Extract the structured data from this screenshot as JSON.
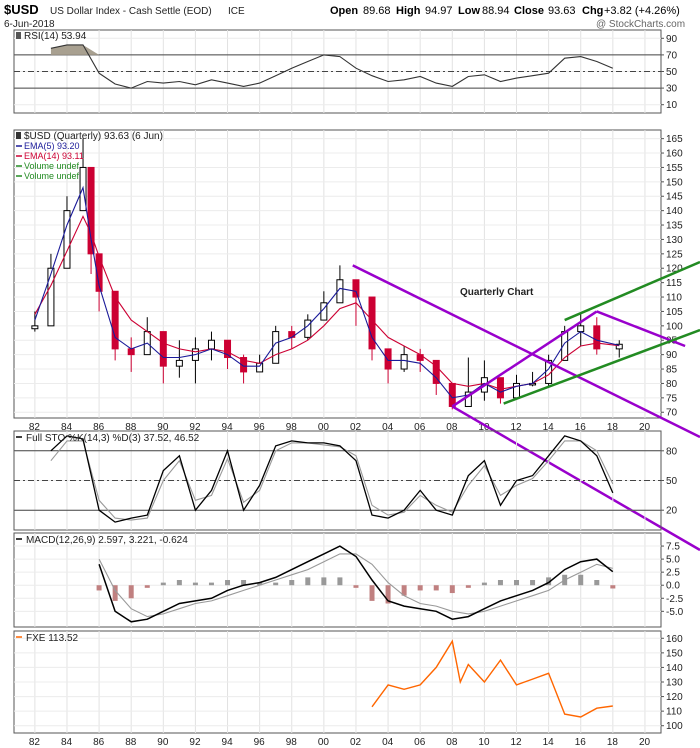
{
  "header": {
    "symbol": "$USD",
    "name": "US Dollar Index - Cash Settle (EOD)",
    "exchange": "ICE",
    "date": "6-Jun-2018",
    "watermark": "@ StockCharts.com",
    "open_label": "Open",
    "open": "89.68",
    "high_label": "High",
    "high": "94.97",
    "low_label": "Low",
    "low": "88.94",
    "close_label": "Close",
    "close": "93.63",
    "chg_label": "Chg",
    "chg": "+3.82 (+4.26%)"
  },
  "colors": {
    "price_up": "#000000",
    "price_down": "#cc0033",
    "ema5": "#1a1a99",
    "ema14": "#cc0033",
    "channel": "#9900cc",
    "uptrend": "#228b22",
    "fxe": "#ff6600",
    "macd_hist": "#999999",
    "macd_hist_neg": "#c08080"
  },
  "chart_data": [
    {
      "panel": "rsi",
      "type": "line",
      "legend": "RSI(14) 53.94",
      "ylim": [
        0,
        100
      ],
      "yticks": [
        10,
        30,
        50,
        70,
        90
      ],
      "levels": [
        30,
        50,
        70
      ],
      "x": [
        1983,
        1984,
        1985,
        1986,
        1987,
        1988,
        1989,
        1990,
        1991,
        1992,
        1993,
        1994,
        1995,
        1996,
        1997,
        1998,
        1999,
        2000,
        2001,
        2002,
        2003,
        2004,
        2005,
        2006,
        2007,
        2008,
        2009,
        2010,
        2011,
        2012,
        2013,
        2014,
        2015,
        2016,
        2017,
        2018
      ],
      "values": [
        78,
        82,
        82,
        48,
        35,
        30,
        38,
        36,
        38,
        34,
        40,
        36,
        32,
        36,
        45,
        54,
        62,
        70,
        68,
        54,
        45,
        38,
        40,
        44,
        36,
        32,
        44,
        46,
        38,
        42,
        45,
        48,
        66,
        68,
        62,
        54
      ]
    },
    {
      "panel": "price",
      "type": "candlestick",
      "legend": [
        "$USD (Quarterly) 93.63 (6 Jun)",
        "EMA(5) 93.20",
        "EMA(14) 93.11",
        "Volume undef",
        "Volume undef"
      ],
      "annotation": "Quarterly Chart",
      "ylim": [
        68,
        168
      ],
      "yticks": [
        70,
        75,
        80,
        85,
        90,
        95,
        100,
        105,
        110,
        115,
        120,
        125,
        130,
        135,
        140,
        145,
        150,
        155,
        160,
        165
      ],
      "xticks": [
        "82",
        "84",
        "86",
        "88",
        "90",
        "92",
        "94",
        "96",
        "98",
        "00",
        "02",
        "04",
        "06",
        "08",
        "10",
        "12",
        "14",
        "16",
        "18",
        "20"
      ],
      "x": [
        1982,
        1983,
        1984,
        1985,
        1985.5,
        1986,
        1987,
        1988,
        1989,
        1990,
        1991,
        1992,
        1993,
        1994,
        1995,
        1996,
        1997,
        1998,
        1999,
        2000,
        2001,
        2002,
        2003,
        2004,
        2005,
        2006,
        2007,
        2008,
        2009,
        2010,
        2011,
        2012,
        2013,
        2014,
        2015,
        2016,
        2017,
        2018.4
      ],
      "close": [
        100,
        120,
        140,
        155,
        125,
        112,
        92,
        90,
        98,
        86,
        88,
        92,
        95,
        89,
        84,
        87,
        98,
        96,
        102,
        108,
        116,
        110,
        92,
        85,
        90,
        88,
        80,
        72,
        77,
        82,
        75,
        80,
        80,
        88,
        98,
        100,
        92,
        93.6
      ],
      "high": [
        105,
        125,
        145,
        165,
        130,
        120,
        100,
        96,
        103,
        95,
        95,
        96,
        98,
        95,
        90,
        90,
        100,
        100,
        104,
        112,
        121,
        115,
        100,
        90,
        93,
        92,
        84,
        78,
        89,
        88,
        80,
        83,
        84,
        90,
        100,
        104,
        103,
        95
      ],
      "low": [
        98,
        110,
        132,
        148,
        118,
        105,
        88,
        84,
        92,
        80,
        82,
        80,
        88,
        85,
        80,
        84,
        92,
        92,
        95,
        102,
        110,
        100,
        88,
        80,
        84,
        84,
        76,
        71,
        76,
        74,
        73,
        78,
        79,
        79,
        92,
        93,
        90,
        89
      ],
      "ema5_values": [
        102,
        118,
        135,
        148,
        130,
        114,
        96,
        92,
        94,
        89,
        89,
        90,
        92,
        90,
        86,
        86,
        94,
        96,
        100,
        106,
        113,
        112,
        96,
        88,
        88,
        87,
        82,
        75,
        76,
        80,
        77,
        79,
        80,
        85,
        94,
        98,
        95,
        93.2
      ],
      "ema14_values": [
        104,
        114,
        126,
        138,
        132,
        124,
        110,
        102,
        98,
        94,
        92,
        91,
        92,
        91,
        88,
        87,
        90,
        92,
        95,
        100,
        106,
        108,
        102,
        96,
        93,
        90,
        86,
        80,
        79,
        80,
        78,
        79,
        80,
        83,
        89,
        93,
        94,
        93.11
      ]
    },
    {
      "panel": "stochastic",
      "type": "line",
      "legend": "Full STO %K(14,3) %D(3) 37.52, 46.52",
      "ylim": [
        0,
        100
      ],
      "yticks": [
        20,
        50,
        80
      ],
      "levels": [
        20,
        50,
        80
      ],
      "x": [
        1983,
        1984,
        1985,
        1986,
        1987,
        1988,
        1989,
        1990,
        1991,
        1992,
        1993,
        1994,
        1995,
        1996,
        1997,
        1998,
        1999,
        2000,
        2001,
        2002,
        2003,
        2004,
        2005,
        2006,
        2007,
        2008,
        2009,
        2010,
        2011,
        2012,
        2013,
        2014,
        2015,
        2016,
        2017,
        2018
      ],
      "k": [
        80,
        95,
        92,
        20,
        8,
        12,
        15,
        60,
        75,
        20,
        40,
        80,
        20,
        45,
        85,
        90,
        88,
        88,
        85,
        70,
        15,
        12,
        20,
        40,
        20,
        15,
        55,
        70,
        25,
        50,
        55,
        75,
        95,
        90,
        75,
        37.52
      ],
      "d": [
        70,
        90,
        90,
        30,
        12,
        10,
        12,
        50,
        70,
        30,
        35,
        72,
        28,
        40,
        80,
        88,
        88,
        86,
        84,
        75,
        25,
        15,
        18,
        35,
        25,
        18,
        45,
        65,
        35,
        45,
        52,
        70,
        90,
        90,
        80,
        46.52
      ]
    },
    {
      "panel": "macd",
      "type": "line",
      "legend": "MACD(12,26,9) 2.597, 3.221, -0.624",
      "ylim": [
        -8,
        10
      ],
      "yticks": [
        -5.0,
        -2.5,
        0.0,
        2.5,
        5.0,
        7.5
      ],
      "x": [
        1986,
        1987,
        1988,
        1989,
        1990,
        1991,
        1992,
        1993,
        1994,
        1995,
        1996,
        1997,
        1998,
        1999,
        2000,
        2001,
        2002,
        2003,
        2004,
        2005,
        2006,
        2007,
        2008,
        2009,
        2010,
        2011,
        2012,
        2013,
        2014,
        2015,
        2016,
        2017,
        2018
      ],
      "macd": [
        4.0,
        -5.0,
        -7.0,
        -6.5,
        -5.0,
        -3.5,
        -3.0,
        -2.5,
        -1.0,
        0.0,
        0.5,
        1.5,
        3.0,
        4.5,
        6.0,
        7.5,
        5.5,
        1.0,
        -3.0,
        -4.0,
        -4.5,
        -5.0,
        -6.5,
        -6.0,
        -4.5,
        -3.0,
        -2.0,
        -1.0,
        0.5,
        3.0,
        4.5,
        5.0,
        2.597
      ],
      "signal": [
        5.0,
        -1.0,
        -4.5,
        -6.0,
        -5.5,
        -4.5,
        -3.5,
        -3.0,
        -2.0,
        -1.0,
        0.0,
        1.0,
        2.0,
        3.0,
        4.5,
        6.0,
        6.0,
        4.0,
        0.5,
        -2.0,
        -3.5,
        -4.0,
        -5.0,
        -5.5,
        -5.0,
        -4.0,
        -3.0,
        -2.0,
        -1.0,
        1.0,
        2.5,
        4.0,
        3.221
      ],
      "histogram": [
        -1.0,
        -3.0,
        -2.5,
        -0.5,
        0.5,
        1.0,
        0.5,
        0.5,
        1.0,
        1.0,
        0.5,
        0.5,
        1.0,
        1.5,
        1.5,
        1.5,
        -0.5,
        -3.0,
        -3.5,
        -2.0,
        -1.0,
        -1.0,
        -1.5,
        -0.5,
        0.5,
        1.0,
        1.0,
        1.0,
        1.5,
        2.0,
        2.0,
        1.0,
        -0.624
      ]
    },
    {
      "panel": "fxe",
      "type": "line",
      "legend": "FXE 113.52",
      "ylim": [
        95,
        165
      ],
      "yticks": [
        100,
        110,
        120,
        130,
        140,
        150,
        160
      ],
      "x": [
        2003,
        2004,
        2005,
        2006,
        2007,
        2008,
        2008.5,
        2009,
        2010,
        2011,
        2012,
        2013,
        2014,
        2015,
        2016,
        2017,
        2018
      ],
      "values": [
        113,
        128,
        125,
        128,
        140,
        158,
        130,
        142,
        130,
        145,
        128,
        132,
        136,
        108,
        106,
        112,
        113.52
      ]
    }
  ]
}
